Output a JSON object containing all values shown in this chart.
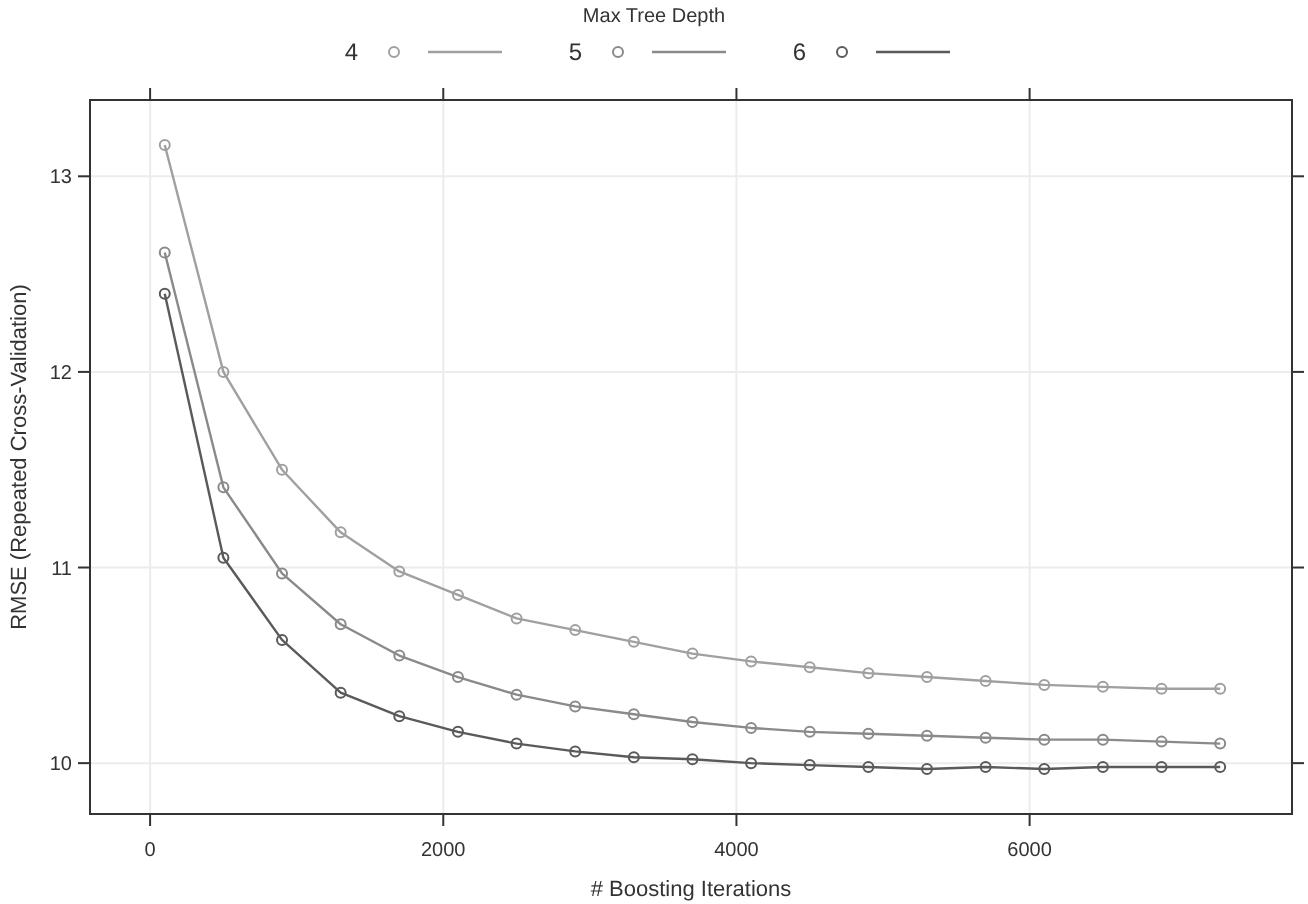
{
  "chart_data": {
    "type": "line",
    "legend_title": "Max Tree Depth",
    "xlabel": "# Boosting Iterations",
    "ylabel": "RMSE (Repeated Cross-Validation)",
    "x": [
      100,
      500,
      900,
      1300,
      1700,
      2100,
      2500,
      2900,
      3300,
      3700,
      4100,
      4500,
      4900,
      5300,
      5700,
      6100,
      6500,
      6900,
      7300
    ],
    "series": [
      {
        "name": "4",
        "color": "#a0a0a0",
        "values": [
          13.16,
          12.0,
          11.5,
          11.18,
          10.98,
          10.86,
          10.74,
          10.68,
          10.62,
          10.56,
          10.52,
          10.49,
          10.46,
          10.44,
          10.42,
          10.4,
          10.39,
          10.38,
          10.38
        ]
      },
      {
        "name": "5",
        "color": "#8a8a8a",
        "values": [
          12.61,
          11.41,
          10.97,
          10.71,
          10.55,
          10.44,
          10.35,
          10.29,
          10.25,
          10.21,
          10.18,
          10.16,
          10.15,
          10.14,
          10.13,
          10.12,
          10.12,
          10.11,
          10.1
        ]
      },
      {
        "name": "6",
        "color": "#5a5a5a",
        "values": [
          12.4,
          11.05,
          10.63,
          10.36,
          10.24,
          10.16,
          10.1,
          10.06,
          10.03,
          10.02,
          10.0,
          9.99,
          9.98,
          9.97,
          9.98,
          9.97,
          9.98,
          9.98,
          9.98
        ]
      }
    ],
    "xlim": [
      -410,
      7790
    ],
    "ylim": [
      9.74,
      13.39
    ],
    "xticks": [
      0,
      2000,
      4000,
      6000
    ],
    "yticks": [
      10,
      11,
      12,
      13
    ],
    "grid": true,
    "legend": "top",
    "marker": "circle",
    "line_style": "solid"
  }
}
